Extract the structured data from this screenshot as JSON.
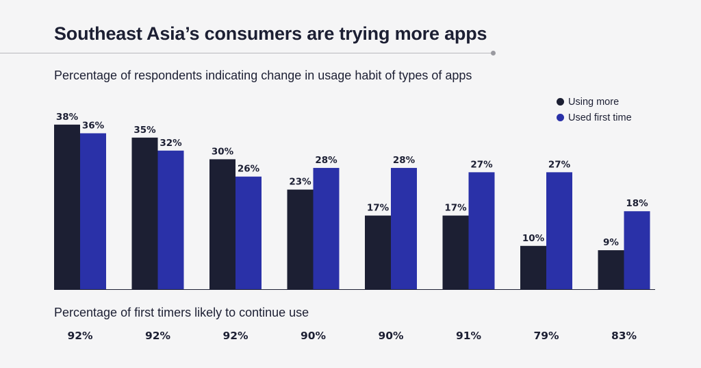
{
  "title": "Southeast Asia’s consumers are trying more apps",
  "subtitle": "Percentage of respondents indicating change in usage habit of types of apps",
  "legend": [
    {
      "label": "Using more",
      "color": "#1c1f33"
    },
    {
      "label": "Used first time",
      "color": "#2a31a8"
    }
  ],
  "chart_data": {
    "type": "bar",
    "categories": [
      "",
      "",
      "",
      "",
      "",
      "",
      "",
      ""
    ],
    "series": [
      {
        "name": "Using more",
        "values": [
          38,
          35,
          30,
          23,
          17,
          17,
          10,
          9
        ],
        "color": "#1c1f33"
      },
      {
        "name": "Used first time",
        "values": [
          36,
          32,
          26,
          28,
          28,
          27,
          27,
          18
        ],
        "color": "#2a31a8"
      }
    ],
    "ylim": [
      0,
      40
    ],
    "grid": false,
    "legend_position": "top-right",
    "value_suffix": "%"
  },
  "continue_use": {
    "title": "Percentage of first timers likely to continue use",
    "values": [
      "92%",
      "92%",
      "92%",
      "90%",
      "90%",
      "91%",
      "79%",
      "83%"
    ]
  }
}
